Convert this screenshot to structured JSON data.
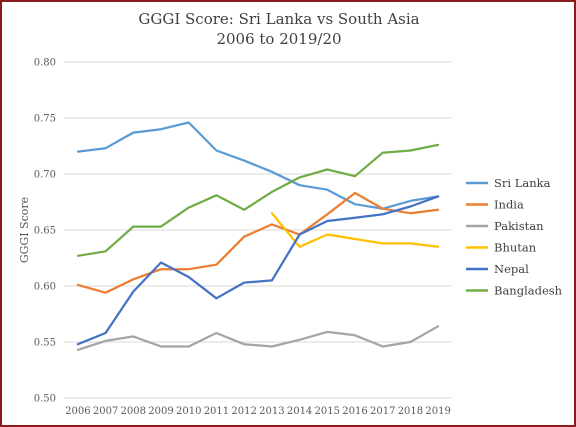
{
  "chart_data": {
    "type": "line",
    "title": "GGGI Score: Sri Lanka vs South Asia",
    "subtitle": "2006 to 2019/20",
    "xlabel": "",
    "ylabel": "GGGI Score",
    "ylim": [
      0.5,
      0.8
    ],
    "yticks": [
      "0.50",
      "0.55",
      "0.60",
      "0.65",
      "0.70",
      "0.75",
      "0.80"
    ],
    "x": [
      "2006",
      "2007",
      "2008",
      "2009",
      "2010",
      "2011",
      "2012",
      "2013",
      "2014",
      "2015",
      "2016",
      "2017",
      "2018",
      "2019"
    ],
    "grid": true,
    "legend": "right",
    "series": [
      {
        "name": "Sri Lanka",
        "color": "#5b9bd5",
        "values": [
          0.72,
          0.723,
          0.737,
          0.74,
          0.746,
          0.721,
          0.712,
          0.702,
          0.69,
          0.686,
          0.673,
          0.669,
          0.676,
          0.68
        ]
      },
      {
        "name": "India",
        "color": "#ed7d31",
        "values": [
          0.601,
          0.594,
          0.606,
          0.615,
          0.615,
          0.619,
          0.644,
          0.655,
          0.646,
          0.664,
          0.683,
          0.669,
          0.665,
          0.668
        ]
      },
      {
        "name": "Pakistan",
        "color": "#a5a5a5",
        "values": [
          0.543,
          0.551,
          0.555,
          0.546,
          0.546,
          0.558,
          0.548,
          0.546,
          0.552,
          0.559,
          0.556,
          0.546,
          0.55,
          0.564
        ]
      },
      {
        "name": "Bhutan",
        "color": "#ffc000",
        "values": [
          null,
          null,
          null,
          null,
          null,
          null,
          null,
          0.665,
          0.635,
          0.646,
          0.642,
          0.638,
          0.638,
          0.635
        ]
      },
      {
        "name": "Nepal",
        "color": "#4472c4",
        "values": [
          0.548,
          0.558,
          0.595,
          0.621,
          0.608,
          0.589,
          0.603,
          0.605,
          0.646,
          0.658,
          0.661,
          0.664,
          0.671,
          0.68
        ]
      },
      {
        "name": "Bangladesh",
        "color": "#70ad47",
        "values": [
          0.627,
          0.631,
          0.653,
          0.653,
          0.67,
          0.681,
          0.668,
          0.684,
          0.697,
          0.704,
          0.698,
          0.719,
          0.721,
          0.726
        ]
      }
    ]
  }
}
